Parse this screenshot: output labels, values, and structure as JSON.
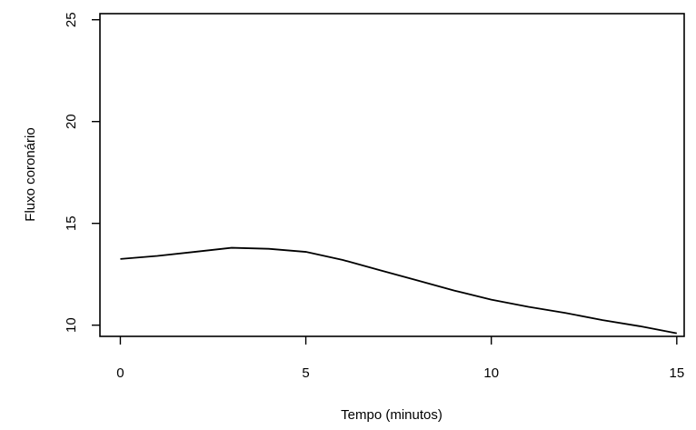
{
  "chart_data": {
    "type": "line",
    "title": "",
    "xlabel": "Tempo (minutos)",
    "ylabel": "Fluxo coronário",
    "xlim": [
      -0.55,
      15.2
    ],
    "ylim": [
      9.45,
      25.3
    ],
    "xticks": [
      0,
      5,
      10,
      15
    ],
    "yticks": [
      10,
      15,
      20,
      25
    ],
    "grid": false,
    "legend": "none",
    "line_color": "#000000",
    "series": [
      {
        "x": [
          0,
          1,
          2,
          3,
          4,
          5,
          6,
          7,
          8,
          9,
          10,
          11,
          12,
          13,
          14,
          15
        ],
        "values": [
          13.25,
          13.4,
          13.6,
          13.8,
          13.75,
          13.6,
          13.2,
          12.7,
          12.2,
          11.7,
          11.25,
          10.9,
          10.6,
          10.25,
          9.95,
          9.6
        ]
      }
    ]
  }
}
